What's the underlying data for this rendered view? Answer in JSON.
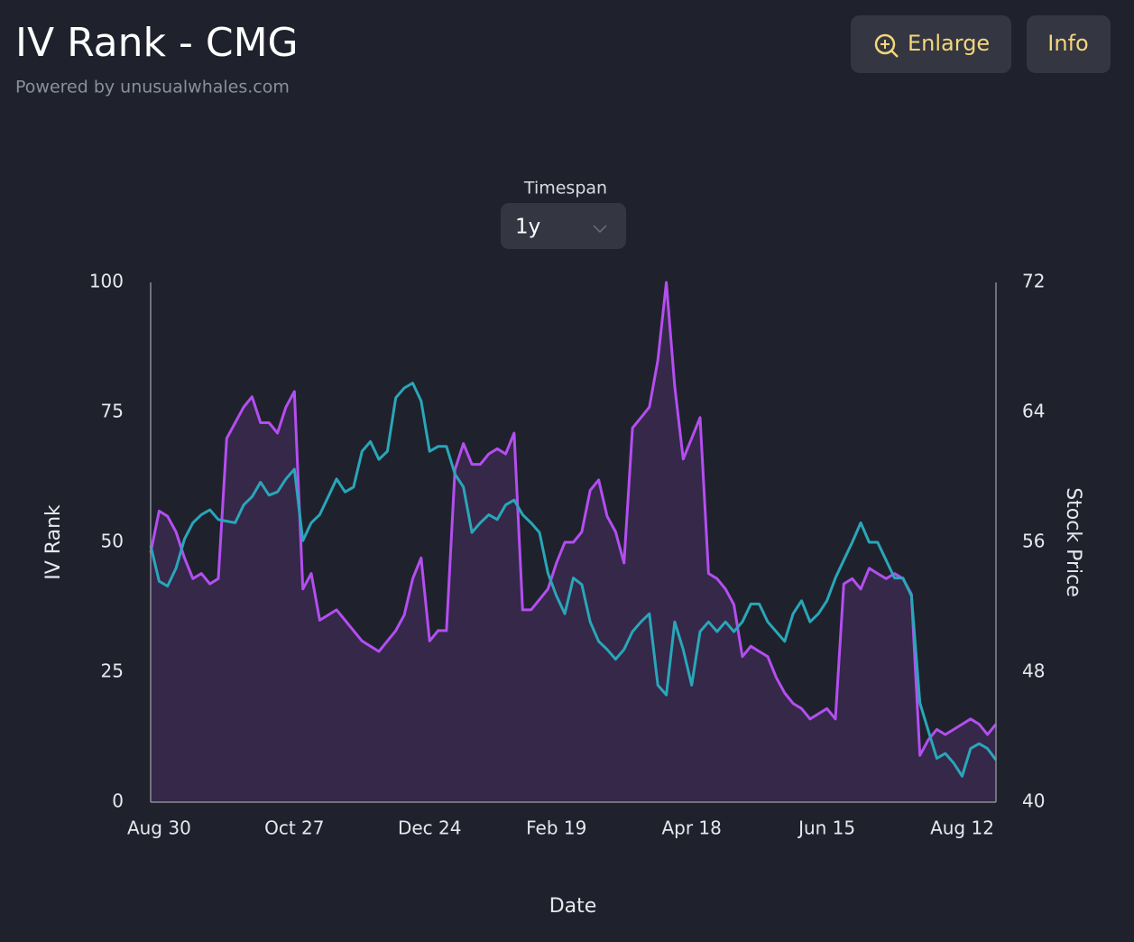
{
  "header": {
    "subtitle": "Powered by unusualwhales.com",
    "buttons": [
      "Enlarge",
      "Info"
    ]
  },
  "timespan": {
    "label": "Timespan",
    "value": "1y"
  },
  "chart_data": {
    "type": "line",
    "title": "IV Rank - CMG",
    "xlabel": "Date",
    "categories": [
      null,
      "Aug 30",
      null,
      null,
      null,
      null,
      null,
      null,
      null,
      null,
      null,
      null,
      null,
      null,
      null,
      null,
      null,
      "Oct 27",
      null,
      null,
      null,
      null,
      null,
      null,
      null,
      null,
      null,
      null,
      null,
      null,
      null,
      null,
      null,
      "Dec 24",
      null,
      null,
      null,
      null,
      null,
      null,
      null,
      null,
      null,
      null,
      null,
      null,
      null,
      null,
      "Feb 19",
      null,
      null,
      null,
      null,
      null,
      null,
      null,
      null,
      null,
      null,
      null,
      null,
      null,
      null,
      null,
      "Apr 18",
      null,
      null,
      null,
      null,
      null,
      null,
      null,
      null,
      null,
      null,
      null,
      null,
      null,
      null,
      null,
      "Jun 15",
      null,
      null,
      null,
      null,
      null,
      null,
      null,
      null,
      null,
      null,
      null,
      null,
      null,
      null,
      null,
      "Aug 12",
      null,
      null,
      null,
      null
    ],
    "series": [
      {
        "name": "IV Rank",
        "color": "#b44ef0",
        "fill": true,
        "values": [
          48,
          56,
          55,
          52,
          47,
          43,
          44,
          42,
          43,
          70,
          73,
          76,
          78,
          73,
          73,
          71,
          76,
          79,
          41,
          44,
          35,
          36,
          37,
          35,
          33,
          31,
          30,
          29,
          31,
          33,
          36,
          43,
          47,
          31,
          33,
          33,
          64,
          69,
          65,
          65,
          67,
          68,
          67,
          71,
          37,
          37,
          39,
          41,
          46,
          50,
          50,
          52,
          60,
          62,
          55,
          52,
          46,
          72,
          74,
          76,
          85,
          100,
          80,
          66,
          70,
          74,
          44,
          43,
          41,
          38,
          28,
          30,
          29,
          28,
          24,
          21,
          19,
          18,
          16,
          17,
          18,
          16,
          42,
          43,
          41,
          45,
          44,
          43,
          44,
          43,
          40,
          9,
          12,
          14,
          13,
          14,
          15,
          16,
          15,
          13,
          15
        ]
      },
      {
        "name": "Stock Price",
        "color": "#2aa6b9",
        "axis": "y2",
        "values": [
          55.8,
          53.6,
          53.3,
          54.4,
          56.2,
          57.2,
          57.7,
          58.0,
          57.4,
          57.3,
          57.2,
          58.3,
          58.8,
          59.7,
          58.9,
          59.1,
          59.9,
          60.5,
          56.1,
          57.2,
          57.7,
          58.8,
          59.9,
          59.1,
          59.4,
          61.6,
          62.2,
          61.1,
          61.6,
          64.9,
          65.5,
          65.8,
          64.7,
          61.6,
          61.9,
          61.9,
          60.2,
          59.4,
          56.6,
          57.2,
          57.7,
          57.4,
          58.3,
          58.6,
          57.7,
          57.2,
          56.6,
          54.1,
          52.7,
          51.6,
          53.8,
          53.4,
          51.1,
          49.9,
          49.4,
          48.8,
          49.4,
          50.5,
          51.1,
          51.6,
          47.2,
          46.6,
          51.1,
          49.4,
          47.2,
          50.5,
          51.1,
          50.5,
          51.1,
          50.5,
          51.1,
          52.2,
          52.2,
          51.1,
          50.5,
          49.9,
          51.6,
          52.4,
          51.1,
          51.6,
          52.4,
          53.8,
          54.9,
          56.0,
          57.2,
          56.0,
          56.0,
          54.9,
          53.8,
          53.8,
          52.7,
          46.1,
          44.4,
          42.7,
          43.0,
          42.4,
          41.6,
          43.3,
          43.6,
          43.3,
          42.6
        ]
      }
    ],
    "ylim": [
      0,
      100
    ],
    "yticks": [
      0,
      25,
      50,
      75,
      100
    ],
    "y2lim": [
      40,
      72
    ],
    "y2ticks": [
      40,
      48,
      56,
      64,
      72
    ],
    "grid": false
  }
}
